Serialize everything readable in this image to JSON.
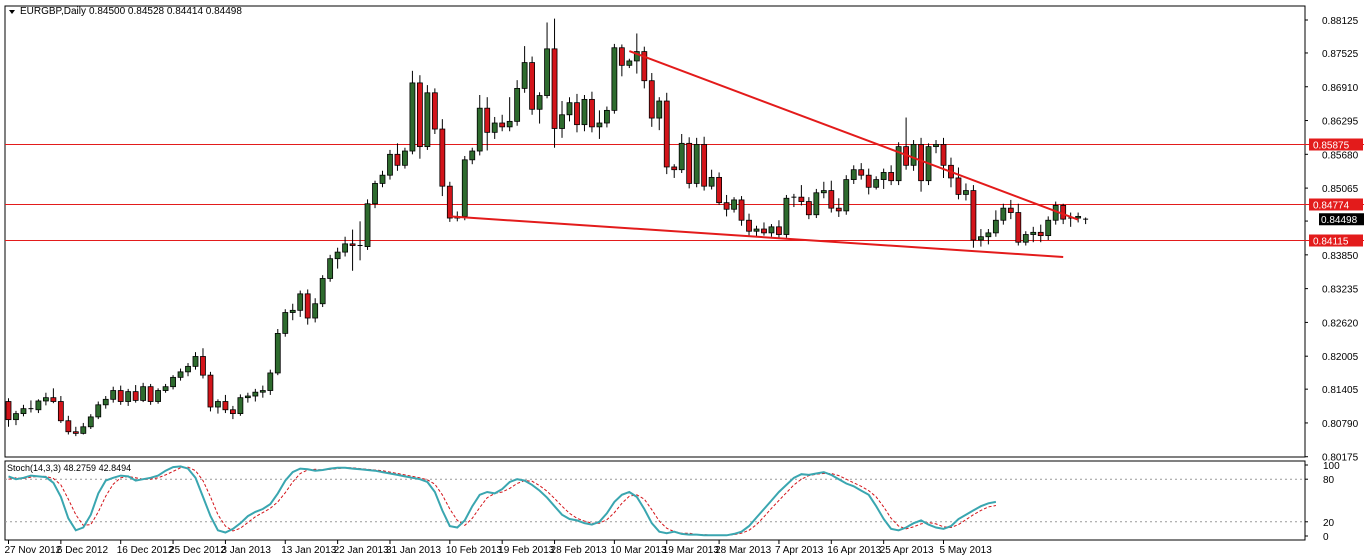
{
  "header": {
    "menu_icon": "triangle-down-icon",
    "symbol": "EURGBP,Daily",
    "ohlc": "0.84500 0.84528 0.84414 0.84498"
  },
  "colors": {
    "bull": "#2e6b2e",
    "bear": "#d3141a",
    "wick": "#000000",
    "level": "#e31b1b",
    "trend": "#e31b1b",
    "stoch_main": "#3aa6b0",
    "stoch_signal": "#d3141a",
    "axis": "#000000",
    "grid_dot": "#9a9a9a"
  },
  "chart_data": {
    "type": "candlestick",
    "symbol": "EURGBP",
    "timeframe": "Daily",
    "ylim": [
      0.8017,
      0.8838
    ],
    "y_ticks": [
      "0.88125",
      "0.87525",
      "0.86910",
      "0.86295",
      "0.85680",
      "0.85065",
      "0.84465",
      "0.83850",
      "0.83235",
      "0.82620",
      "0.82005",
      "0.81405",
      "0.80790",
      "0.80175"
    ],
    "x_ticks": [
      {
        "label": "27 Nov 2012",
        "i": 0
      },
      {
        "label": "6 Dec 2012",
        "i": 7
      },
      {
        "label": "16 Dec 2012",
        "i": 15
      },
      {
        "label": "25 Dec 2012",
        "i": 22
      },
      {
        "label": "3 Jan 2013",
        "i": 29
      },
      {
        "label": "13 Jan 2013",
        "i": 37
      },
      {
        "label": "22 Jan 2013",
        "i": 44
      },
      {
        "label": "31 Jan 2013",
        "i": 51
      },
      {
        "label": "10 Feb 2013",
        "i": 59
      },
      {
        "label": "19 Feb 2013",
        "i": 66
      },
      {
        "label": "28 Feb 2013",
        "i": 73
      },
      {
        "label": "10 Mar 2013",
        "i": 81
      },
      {
        "label": "19 Mar 2013",
        "i": 88
      },
      {
        "label": "28 Mar 2013",
        "i": 95
      },
      {
        "label": "7 Apr 2013",
        "i": 103
      },
      {
        "label": "16 Apr 2013",
        "i": 110
      },
      {
        "label": "25 Apr 2013",
        "i": 117
      },
      {
        "label": "5 May 2013",
        "i": 125
      }
    ],
    "candles": [
      [
        0.8118,
        0.8124,
        0.8072,
        0.8085
      ],
      [
        0.8085,
        0.8101,
        0.8075,
        0.8096
      ],
      [
        0.8096,
        0.8112,
        0.8091,
        0.8105
      ],
      [
        0.8105,
        0.812,
        0.8098,
        0.8103
      ],
      [
        0.8103,
        0.8122,
        0.8097,
        0.8119
      ],
      [
        0.8119,
        0.8134,
        0.8111,
        0.8125
      ],
      [
        0.8125,
        0.8142,
        0.8115,
        0.8118
      ],
      [
        0.8118,
        0.8128,
        0.8079,
        0.8083
      ],
      [
        0.8083,
        0.8092,
        0.8058,
        0.8063
      ],
      [
        0.8063,
        0.8072,
        0.8055,
        0.806
      ],
      [
        0.806,
        0.8079,
        0.8058,
        0.8072
      ],
      [
        0.8072,
        0.8095,
        0.8068,
        0.809
      ],
      [
        0.809,
        0.8118,
        0.8086,
        0.8112
      ],
      [
        0.8112,
        0.8128,
        0.8105,
        0.8122
      ],
      [
        0.8122,
        0.8145,
        0.8116,
        0.8138
      ],
      [
        0.8138,
        0.8147,
        0.8112,
        0.8118
      ],
      [
        0.8118,
        0.8141,
        0.811,
        0.8136
      ],
      [
        0.8136,
        0.8148,
        0.8116,
        0.812
      ],
      [
        0.812,
        0.8152,
        0.8117,
        0.8145
      ],
      [
        0.8145,
        0.815,
        0.8112,
        0.8118
      ],
      [
        0.8118,
        0.8142,
        0.8114,
        0.8138
      ],
      [
        0.8138,
        0.815,
        0.8134,
        0.8145
      ],
      [
        0.8145,
        0.8166,
        0.814,
        0.8162
      ],
      [
        0.8162,
        0.8178,
        0.8156,
        0.8172
      ],
      [
        0.8172,
        0.8188,
        0.8164,
        0.8182
      ],
      [
        0.8182,
        0.8208,
        0.8176,
        0.82
      ],
      [
        0.82,
        0.8215,
        0.816,
        0.8166
      ],
      [
        0.8166,
        0.8172,
        0.81,
        0.8108
      ],
      [
        0.8108,
        0.8122,
        0.8096,
        0.8118
      ],
      [
        0.8118,
        0.813,
        0.8097,
        0.8103
      ],
      [
        0.8103,
        0.811,
        0.8086,
        0.8096
      ],
      [
        0.8096,
        0.8131,
        0.8092,
        0.8125
      ],
      [
        0.8125,
        0.8134,
        0.8116,
        0.8128
      ],
      [
        0.8128,
        0.8141,
        0.8118,
        0.8135
      ],
      [
        0.8135,
        0.8147,
        0.8125,
        0.8138
      ],
      [
        0.8138,
        0.8176,
        0.813,
        0.817
      ],
      [
        0.817,
        0.825,
        0.8166,
        0.8242
      ],
      [
        0.8242,
        0.8286,
        0.8236,
        0.828
      ],
      [
        0.828,
        0.8296,
        0.8266,
        0.8284
      ],
      [
        0.8284,
        0.832,
        0.8272,
        0.8314
      ],
      [
        0.8314,
        0.8322,
        0.8258,
        0.827
      ],
      [
        0.827,
        0.8306,
        0.8262,
        0.8296
      ],
      [
        0.8296,
        0.8348,
        0.829,
        0.8342
      ],
      [
        0.8342,
        0.8385,
        0.8336,
        0.8378
      ],
      [
        0.8378,
        0.8398,
        0.836,
        0.839
      ],
      [
        0.839,
        0.8418,
        0.8382,
        0.8405
      ],
      [
        0.8405,
        0.8431,
        0.8356,
        0.8402
      ],
      [
        0.8402,
        0.8446,
        0.8375,
        0.84
      ],
      [
        0.84,
        0.8486,
        0.8394,
        0.8478
      ],
      [
        0.8478,
        0.852,
        0.847,
        0.8515
      ],
      [
        0.8515,
        0.8538,
        0.8508,
        0.853
      ],
      [
        0.853,
        0.8576,
        0.8522,
        0.8568
      ],
      [
        0.8568,
        0.8588,
        0.8538,
        0.8548
      ],
      [
        0.8548,
        0.858,
        0.8542,
        0.8574
      ],
      [
        0.8574,
        0.872,
        0.8568,
        0.8698
      ],
      [
        0.8698,
        0.8712,
        0.856,
        0.8582
      ],
      [
        0.8582,
        0.8694,
        0.8576,
        0.868
      ],
      [
        0.868,
        0.8688,
        0.8605,
        0.8614
      ],
      [
        0.8614,
        0.8632,
        0.8492,
        0.851
      ],
      [
        0.851,
        0.8518,
        0.8445,
        0.8452
      ],
      [
        0.8452,
        0.8464,
        0.8446,
        0.8455
      ],
      [
        0.8455,
        0.8565,
        0.8448,
        0.8558
      ],
      [
        0.8558,
        0.858,
        0.855,
        0.8574
      ],
      [
        0.8574,
        0.8676,
        0.8566,
        0.8652
      ],
      [
        0.8652,
        0.8672,
        0.8575,
        0.8608
      ],
      [
        0.8608,
        0.8636,
        0.8596,
        0.8625
      ],
      [
        0.8625,
        0.864,
        0.861,
        0.8618
      ],
      [
        0.8618,
        0.8672,
        0.861,
        0.8628
      ],
      [
        0.8628,
        0.8703,
        0.862,
        0.8688
      ],
      [
        0.8688,
        0.8765,
        0.868,
        0.8735
      ],
      [
        0.8735,
        0.8746,
        0.864,
        0.865
      ],
      [
        0.865,
        0.8681,
        0.8624,
        0.8675
      ],
      [
        0.8675,
        0.8808,
        0.867,
        0.876
      ],
      [
        0.876,
        0.8815,
        0.858,
        0.8615
      ],
      [
        0.8615,
        0.8665,
        0.8598,
        0.864
      ],
      [
        0.864,
        0.8672,
        0.8628,
        0.8662
      ],
      [
        0.8662,
        0.8678,
        0.8608,
        0.8622
      ],
      [
        0.8622,
        0.8676,
        0.861,
        0.8668
      ],
      [
        0.8668,
        0.8682,
        0.8608,
        0.8618
      ],
      [
        0.8618,
        0.8648,
        0.8596,
        0.8625
      ],
      [
        0.8625,
        0.8655,
        0.8617,
        0.8648
      ],
      [
        0.8648,
        0.8769,
        0.8642,
        0.8762
      ],
      [
        0.8762,
        0.8768,
        0.871,
        0.873
      ],
      [
        0.873,
        0.8742,
        0.8725,
        0.8738
      ],
      [
        0.8738,
        0.8788,
        0.8715,
        0.8755
      ],
      [
        0.8755,
        0.8764,
        0.8688,
        0.8702
      ],
      [
        0.8702,
        0.8716,
        0.8618,
        0.8634
      ],
      [
        0.8634,
        0.8672,
        0.8612,
        0.8665
      ],
      [
        0.8665,
        0.868,
        0.8532,
        0.8545
      ],
      [
        0.8545,
        0.855,
        0.8525,
        0.854
      ],
      [
        0.854,
        0.8605,
        0.8534,
        0.8588
      ],
      [
        0.8588,
        0.8599,
        0.8506,
        0.8515
      ],
      [
        0.8515,
        0.8598,
        0.8508,
        0.8586
      ],
      [
        0.8586,
        0.86,
        0.8502,
        0.851
      ],
      [
        0.851,
        0.854,
        0.8504,
        0.8526
      ],
      [
        0.8526,
        0.8535,
        0.8476,
        0.848
      ],
      [
        0.848,
        0.8494,
        0.8455,
        0.8468
      ],
      [
        0.8468,
        0.849,
        0.8462,
        0.8485
      ],
      [
        0.8485,
        0.8492,
        0.8438,
        0.8448
      ],
      [
        0.8448,
        0.846,
        0.842,
        0.8428
      ],
      [
        0.8428,
        0.8438,
        0.8419,
        0.8432
      ],
      [
        0.8432,
        0.8444,
        0.842,
        0.8425
      ],
      [
        0.8425,
        0.8441,
        0.8418,
        0.8436
      ],
      [
        0.8436,
        0.8448,
        0.8416,
        0.8422
      ],
      [
        0.8422,
        0.8494,
        0.8416,
        0.8488
      ],
      [
        0.8488,
        0.8496,
        0.8472,
        0.849
      ],
      [
        0.849,
        0.8512,
        0.8475,
        0.8482
      ],
      [
        0.8482,
        0.849,
        0.845,
        0.8458
      ],
      [
        0.8458,
        0.8505,
        0.8452,
        0.8498
      ],
      [
        0.8498,
        0.8518,
        0.8488,
        0.8502
      ],
      [
        0.8502,
        0.852,
        0.8462,
        0.847
      ],
      [
        0.847,
        0.8488,
        0.8454,
        0.8465
      ],
      [
        0.8465,
        0.853,
        0.8458,
        0.8522
      ],
      [
        0.8522,
        0.8548,
        0.8514,
        0.854
      ],
      [
        0.854,
        0.8552,
        0.8522,
        0.853
      ],
      [
        0.853,
        0.8542,
        0.8495,
        0.8508
      ],
      [
        0.8508,
        0.8528,
        0.8504,
        0.8522
      ],
      [
        0.8522,
        0.8542,
        0.8505,
        0.8535
      ],
      [
        0.8535,
        0.8548,
        0.8512,
        0.852
      ],
      [
        0.852,
        0.859,
        0.8512,
        0.8582
      ],
      [
        0.8582,
        0.8635,
        0.854,
        0.8548
      ],
      [
        0.8548,
        0.8594,
        0.8538,
        0.8586
      ],
      [
        0.8586,
        0.8598,
        0.85,
        0.852
      ],
      [
        0.852,
        0.8588,
        0.8512,
        0.8582
      ],
      [
        0.8582,
        0.8594,
        0.857,
        0.8586
      ],
      [
        0.8586,
        0.8598,
        0.8525,
        0.8548
      ],
      [
        0.8548,
        0.8562,
        0.8508,
        0.8525
      ],
      [
        0.8525,
        0.8544,
        0.8486,
        0.8495
      ],
      [
        0.8495,
        0.8515,
        0.8484,
        0.8502
      ],
      [
        0.8502,
        0.8512,
        0.8398,
        0.8412
      ],
      [
        0.8412,
        0.8432,
        0.84,
        0.8418
      ],
      [
        0.8418,
        0.8432,
        0.8404,
        0.8425
      ],
      [
        0.8425,
        0.8466,
        0.8418,
        0.8448
      ],
      [
        0.8448,
        0.8478,
        0.844,
        0.847
      ],
      [
        0.847,
        0.8485,
        0.845,
        0.8462
      ],
      [
        0.8462,
        0.8478,
        0.8402,
        0.8408
      ],
      [
        0.8408,
        0.8428,
        0.8402,
        0.8422
      ],
      [
        0.8422,
        0.8436,
        0.8408,
        0.8426
      ],
      [
        0.8426,
        0.844,
        0.8408,
        0.842
      ],
      [
        0.842,
        0.8455,
        0.8412,
        0.8448
      ],
      [
        0.8448,
        0.8482,
        0.844,
        0.8475
      ],
      [
        0.8475,
        0.8478,
        0.8441,
        0.845
      ],
      [
        0.845,
        0.8462,
        0.8436,
        0.8452
      ],
      [
        0.8452,
        0.8462,
        0.8444,
        0.8455
      ],
      [
        0.845,
        0.8453,
        0.8441,
        0.845
      ]
    ],
    "horizontal_levels": [
      {
        "price": 0.85875,
        "label": "0.85875"
      },
      {
        "price": 0.84774,
        "label": "0.84774"
      },
      {
        "price": 0.84115,
        "label": "0.84115"
      }
    ],
    "current_price": {
      "price": 0.84498,
      "label": "0.84498"
    },
    "trendlines": [
      {
        "from_i": 83,
        "from_price": 0.8756,
        "to_i": 143,
        "to_price": 0.8449
      },
      {
        "from_i": 59,
        "from_price": 0.8455,
        "to_i": 141,
        "to_price": 0.8381
      }
    ],
    "stochastic": {
      "label": "Stoch(14,3,3) 48.2759 42.8494",
      "ylim": [
        0,
        100
      ],
      "y_ticks": [
        "100",
        "80",
        "20",
        "0"
      ],
      "levels": [
        80,
        20
      ],
      "k": [
        84,
        80,
        82,
        85,
        84,
        83,
        75,
        55,
        25,
        8,
        12,
        30,
        60,
        78,
        82,
        85,
        84,
        78,
        80,
        82,
        85,
        92,
        97,
        98,
        95,
        82,
        55,
        28,
        8,
        5,
        10,
        18,
        28,
        34,
        38,
        45,
        60,
        78,
        90,
        95,
        94,
        92,
        93,
        95,
        96,
        96,
        95,
        94,
        93,
        92,
        90,
        88,
        86,
        84,
        82,
        80,
        76,
        62,
        36,
        14,
        12,
        22,
        42,
        58,
        62,
        60,
        66,
        76,
        80,
        78,
        72,
        64,
        54,
        42,
        30,
        24,
        22,
        18,
        16,
        20,
        32,
        48,
        58,
        62,
        55,
        38,
        18,
        6,
        4,
        6,
        3,
        2,
        2,
        1,
        1,
        1,
        1,
        3,
        6,
        14,
        26,
        38,
        50,
        62,
        72,
        82,
        87,
        86,
        88,
        90,
        86,
        80,
        74,
        70,
        64,
        58,
        42,
        24,
        10,
        8,
        12,
        18,
        22,
        16,
        12,
        10,
        14,
        24,
        30,
        36,
        42,
        46,
        48
      ],
      "d": [
        80,
        82,
        81,
        83,
        84,
        84,
        81,
        72,
        52,
        30,
        15,
        16,
        34,
        56,
        73,
        82,
        84,
        82,
        80,
        80,
        82,
        86,
        91,
        96,
        97,
        92,
        78,
        55,
        30,
        14,
        7,
        11,
        19,
        27,
        33,
        39,
        48,
        61,
        76,
        88,
        93,
        94,
        93,
        94,
        95,
        96,
        96,
        95,
        94,
        93,
        92,
        90,
        88,
        86,
        84,
        82,
        79,
        73,
        58,
        38,
        22,
        15,
        25,
        40,
        54,
        60,
        62,
        67,
        74,
        78,
        77,
        71,
        63,
        53,
        42,
        32,
        25,
        21,
        18,
        18,
        23,
        33,
        46,
        56,
        58,
        52,
        37,
        21,
        11,
        6,
        4,
        4,
        2,
        2,
        1,
        1,
        1,
        2,
        4,
        8,
        16,
        27,
        39,
        50,
        61,
        72,
        80,
        85,
        87,
        88,
        88,
        85,
        80,
        75,
        70,
        64,
        55,
        41,
        25,
        14,
        10,
        13,
        17,
        19,
        17,
        13,
        12,
        16,
        23,
        30,
        36,
        41,
        43
      ]
    }
  }
}
